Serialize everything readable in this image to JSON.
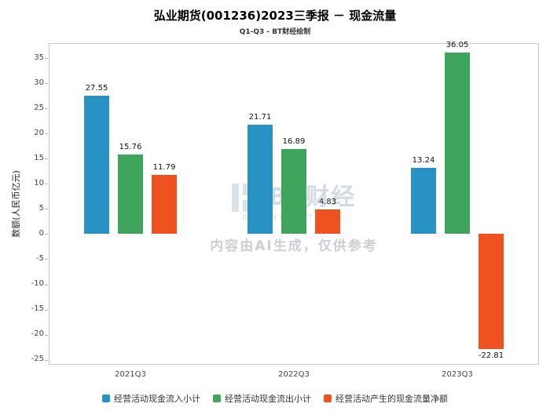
{
  "title": "弘业期货(001236)2023三季报 － 现金流量",
  "subtitle": "Q1-Q3 - BT财经绘制",
  "watermark": {
    "logo_text": "BT财经",
    "logo_sub": "BUSINESS TIMES",
    "ai_notice": "内容由AI生成，仅供参考"
  },
  "chart_data": {
    "type": "bar",
    "title": "弘业期货(001236)2023三季报 － 现金流量",
    "subtitle": "Q1-Q3 - BT财经绘制",
    "categories": [
      "2021Q3",
      "2022Q3",
      "2023Q3"
    ],
    "series": [
      {
        "name": "经营活动现金流入小计",
        "color": "#2792c3",
        "values": [
          27.55,
          21.71,
          13.24
        ]
      },
      {
        "name": "经营活动现金流出小计",
        "color": "#3fa45c",
        "values": [
          15.76,
          16.89,
          36.05
        ]
      },
      {
        "name": "经营活动产生的现金流量净额",
        "color": "#f0521f",
        "values": [
          11.79,
          4.83,
          -22.81
        ]
      }
    ],
    "xlabel": "",
    "ylabel": "数额(人民币亿元)",
    "ylim": [
      -26,
      38
    ],
    "yticks": [
      -25,
      -20,
      -15,
      -10,
      -5,
      0,
      5,
      10,
      15,
      20,
      25,
      30,
      35
    ],
    "grid": false,
    "legend_position": "bottom",
    "value_labels": true
  }
}
